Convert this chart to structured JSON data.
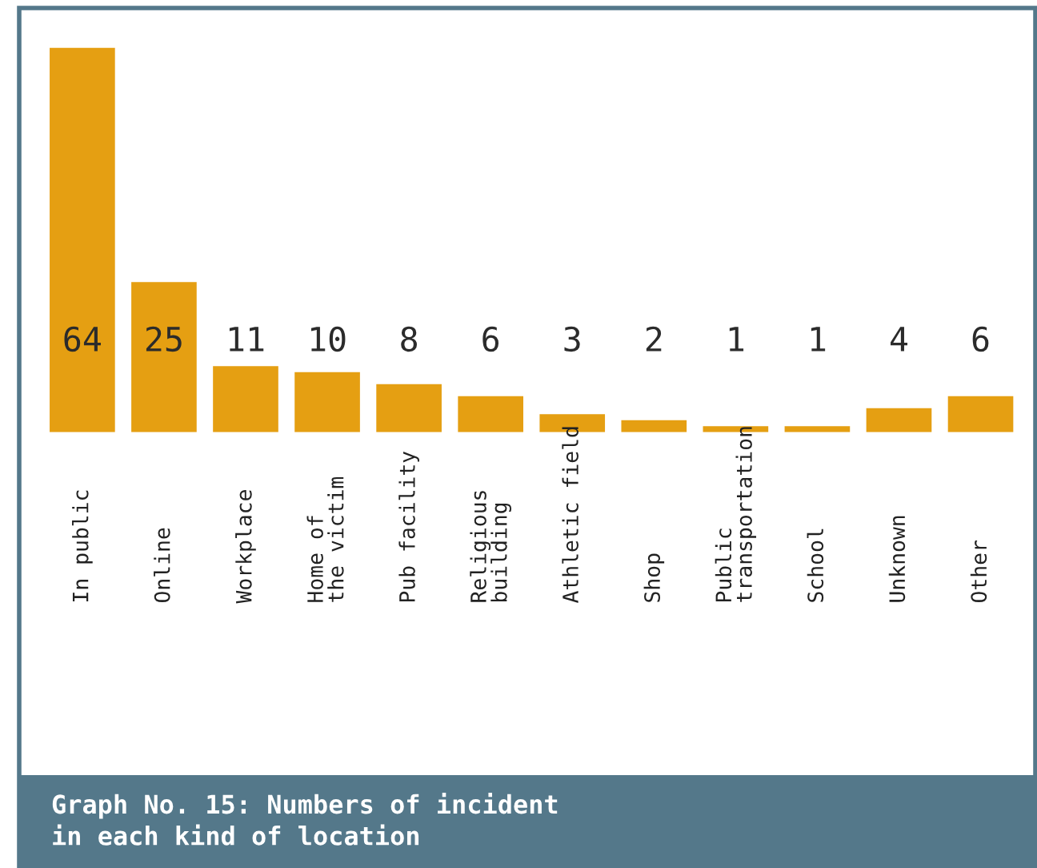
{
  "chart_data": {
    "type": "bar",
    "title": "Graph No. 15: Numbers of incident\nin each kind of location",
    "categories": [
      "In public",
      "Online",
      "Workplace",
      "Home of\nthe victim",
      "Pub facility",
      "Religious\nbuilding",
      "Athletic field",
      "Shop",
      "Public\ntransportation",
      "School",
      "Unknown",
      "Other"
    ],
    "values": [
      64,
      25,
      11,
      10,
      8,
      6,
      3,
      2,
      1,
      1,
      4,
      6
    ],
    "color": "#e59f12",
    "data_labels": true
  }
}
